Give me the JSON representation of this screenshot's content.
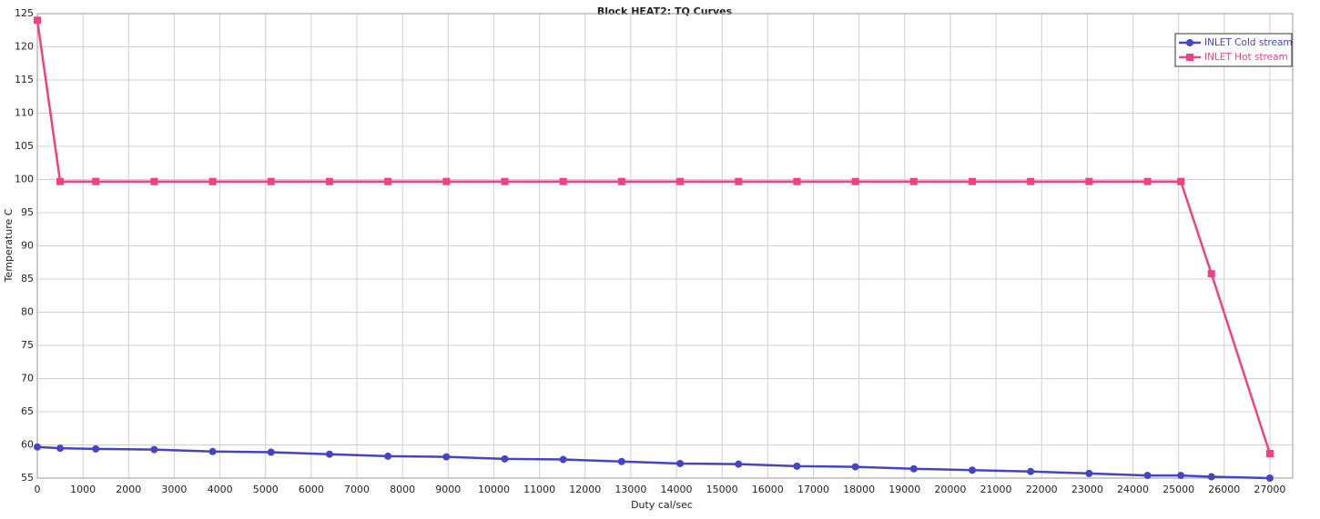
{
  "chart_data": {
    "type": "line",
    "title": "Block HEAT2: TQ Curves",
    "x_label": "Duty cal/sec",
    "y_label": "Temperature C",
    "x": [
      0,
      500,
      1280,
      2560,
      3840,
      5120,
      6400,
      7680,
      8960,
      10240,
      11520,
      12800,
      14080,
      15360,
      16640,
      17920,
      19200,
      20480,
      21760,
      23040,
      24320,
      25050,
      25720,
      27000
    ],
    "series": [
      {
        "name": "INLET Cold stream",
        "color": "#4444c4",
        "marker": "circle",
        "values": [
          59.7,
          59.5,
          59.4,
          59.3,
          59.0,
          58.9,
          58.6,
          58.3,
          58.2,
          57.9,
          57.8,
          57.5,
          57.2,
          57.1,
          56.8,
          56.7,
          56.4,
          56.2,
          56.0,
          55.7,
          55.4,
          55.4,
          55.2,
          55.0
        ]
      },
      {
        "name": "INLET Hot stream",
        "color": "#f04282",
        "marker": "square",
        "values": [
          124.0,
          99.7,
          99.7,
          99.7,
          99.7,
          99.7,
          99.7,
          99.7,
          99.7,
          99.7,
          99.7,
          99.7,
          99.7,
          99.7,
          99.7,
          99.7,
          99.7,
          99.7,
          99.7,
          99.7,
          99.7,
          99.7,
          85.8,
          58.7
        ]
      }
    ],
    "xlim": [
      0,
      27500
    ],
    "ylim": [
      55,
      125
    ],
    "xticks": [
      0,
      1000,
      2000,
      3000,
      4000,
      5000,
      6000,
      7000,
      8000,
      9000,
      10000,
      11000,
      12000,
      13000,
      14000,
      15000,
      16000,
      17000,
      18000,
      19000,
      20000,
      21000,
      22000,
      23000,
      24000,
      25000,
      26000,
      27000
    ],
    "yticks": [
      55,
      60,
      65,
      70,
      75,
      80,
      85,
      90,
      95,
      100,
      105,
      110,
      115,
      120,
      125
    ],
    "grid": true,
    "legend": "top-right"
  }
}
